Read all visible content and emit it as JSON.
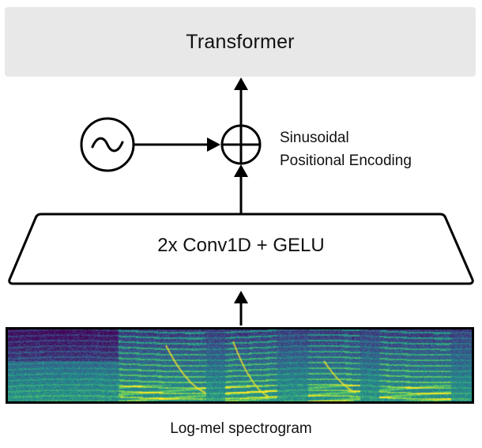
{
  "diagram": {
    "transformer_label": "Transformer",
    "conv_label": "2x Conv1D + GELU",
    "positional_encoding_line1": "Sinusoidal",
    "positional_encoding_line2": "Positional Encoding",
    "spectrogram_label": "Log-mel spectrogram",
    "add_symbol": "plus-circle-icon",
    "sine_symbol": "sine-wave-icon",
    "spectrogram_colormap": [
      "#440154",
      "#3b528b",
      "#21918c",
      "#5ec962",
      "#fde725"
    ]
  }
}
